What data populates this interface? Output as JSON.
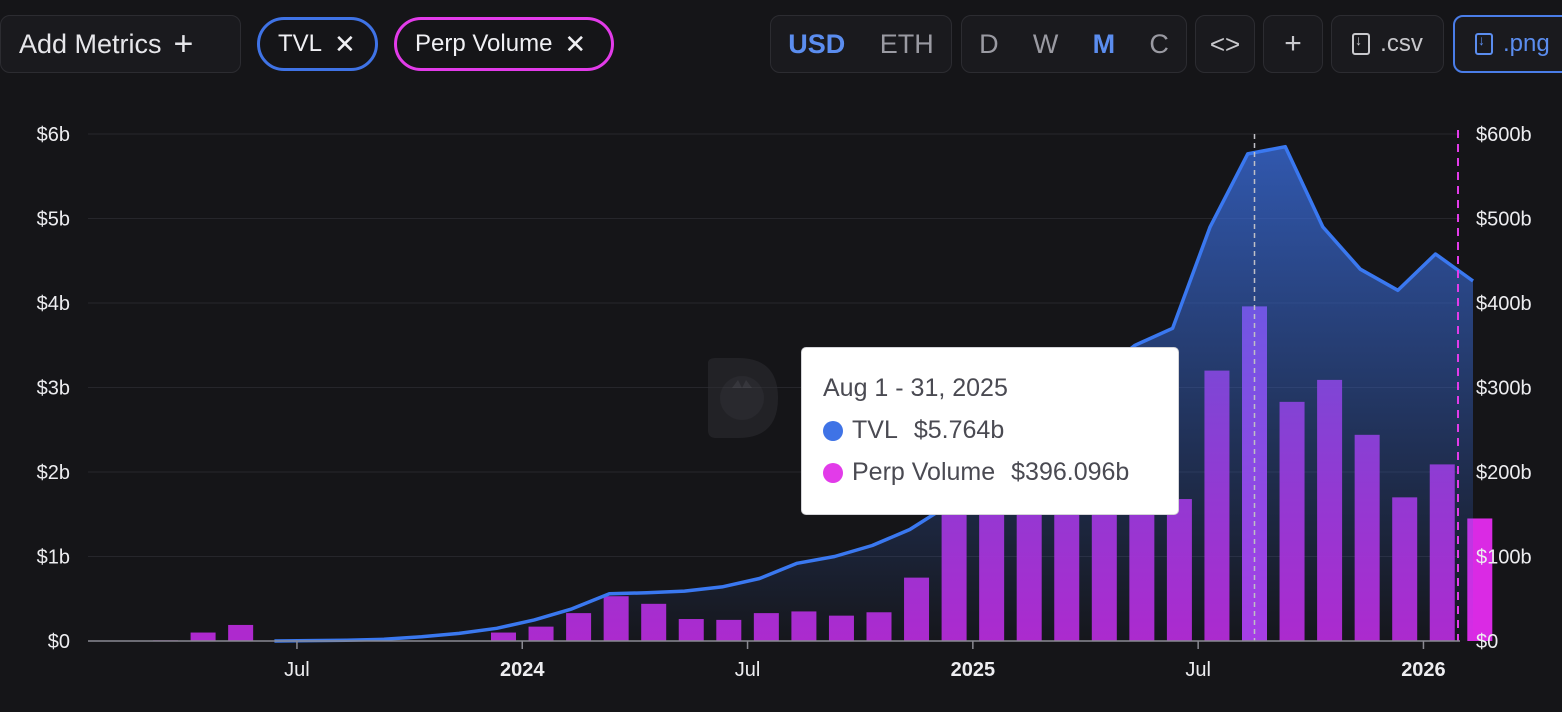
{
  "toolbar": {
    "add_metrics_label": "Add Metrics",
    "metric_chips": [
      {
        "label": "TVL",
        "color": "#3f73e6"
      },
      {
        "label": "Perp Volume",
        "color": "#e23be9"
      }
    ],
    "currency_options": [
      "USD",
      "ETH"
    ],
    "currency_selected": "USD",
    "period_options": [
      "D",
      "W",
      "M",
      "C"
    ],
    "period_selected": "M",
    "embed_icon": "code-icon",
    "add_icon": "plus-icon",
    "csv_label": ".csv",
    "png_label": ".png",
    "accent_color": "#5b8def"
  },
  "tooltip": {
    "date": "Aug 1 - 31, 2025",
    "rows": [
      {
        "name": "TVL",
        "value": "$5.764b",
        "color": "#3f73e6"
      },
      {
        "name": "Perp Volume",
        "value": "$396.096b",
        "color": "#e23be9"
      }
    ]
  },
  "chart_data": {
    "type": "bar",
    "x_ticks": [
      "Jul",
      "2024",
      "Jul",
      "2025",
      "Jul",
      "2026"
    ],
    "bold_ticks": [
      "2024",
      "2025",
      "2026"
    ],
    "y_left_ticks": [
      "$0",
      "$1b",
      "$2b",
      "$3b",
      "$4b",
      "$5b",
      "$6b"
    ],
    "y_right_ticks": [
      "$0",
      "$100b",
      "$200b",
      "$300b",
      "$400b",
      "$500b",
      "$600b"
    ],
    "ylim_left": [
      0,
      6
    ],
    "ylim_right": [
      0,
      600
    ],
    "grid": true,
    "highlighted_month": "2025-08",
    "series": [
      {
        "name": "Perp Volume",
        "kind": "bar",
        "axis": "right",
        "unit": "billion USD",
        "x": [
          "2023-02",
          "2023-03",
          "2023-04",
          "2023-05",
          "2023-06",
          "2023-07",
          "2023-08",
          "2023-09",
          "2023-10",
          "2023-11",
          "2023-12",
          "2024-01",
          "2024-02",
          "2024-03",
          "2024-04",
          "2024-05",
          "2024-06",
          "2024-07",
          "2024-08",
          "2024-09",
          "2024-10",
          "2024-11",
          "2024-12",
          "2025-01",
          "2025-02",
          "2025-03",
          "2025-04",
          "2025-05",
          "2025-06",
          "2025-07",
          "2025-08",
          "2025-09",
          "2025-10",
          "2025-11",
          "2025-12",
          "2026-01",
          "2026-02"
        ],
        "values": [
          0.3,
          0.8,
          10,
          19,
          0,
          0,
          0,
          0,
          0,
          0,
          10,
          17,
          33,
          53,
          44,
          26,
          25,
          33,
          35,
          30,
          34,
          75,
          160,
          175,
          180,
          170,
          168,
          165,
          168,
          320,
          396,
          283,
          309,
          244,
          170,
          209,
          145
        ]
      },
      {
        "name": "TVL",
        "kind": "area",
        "axis": "left",
        "unit": "billion USD",
        "x": [
          "2023-06",
          "2023-07",
          "2023-08",
          "2023-09",
          "2023-10",
          "2023-11",
          "2023-12",
          "2024-01",
          "2024-02",
          "2024-03",
          "2024-04",
          "2024-05",
          "2024-06",
          "2024-07",
          "2024-08",
          "2024-09",
          "2024-10",
          "2024-11",
          "2024-12",
          "2025-01",
          "2025-02",
          "2025-03",
          "2025-04",
          "2025-05",
          "2025-06",
          "2025-07",
          "2025-08",
          "2025-09",
          "2025-10",
          "2025-11",
          "2025-12",
          "2026-01",
          "2026-02"
        ],
        "values": [
          0,
          0.005,
          0.01,
          0.02,
          0.05,
          0.09,
          0.15,
          0.25,
          0.38,
          0.56,
          0.57,
          0.59,
          0.64,
          0.74,
          0.92,
          1.0,
          1.13,
          1.32,
          1.6,
          1.95,
          2.4,
          2.85,
          3.15,
          3.5,
          3.7,
          4.9,
          5.764,
          5.85,
          4.9,
          4.4,
          4.15,
          4.58,
          4.26
        ]
      }
    ]
  }
}
